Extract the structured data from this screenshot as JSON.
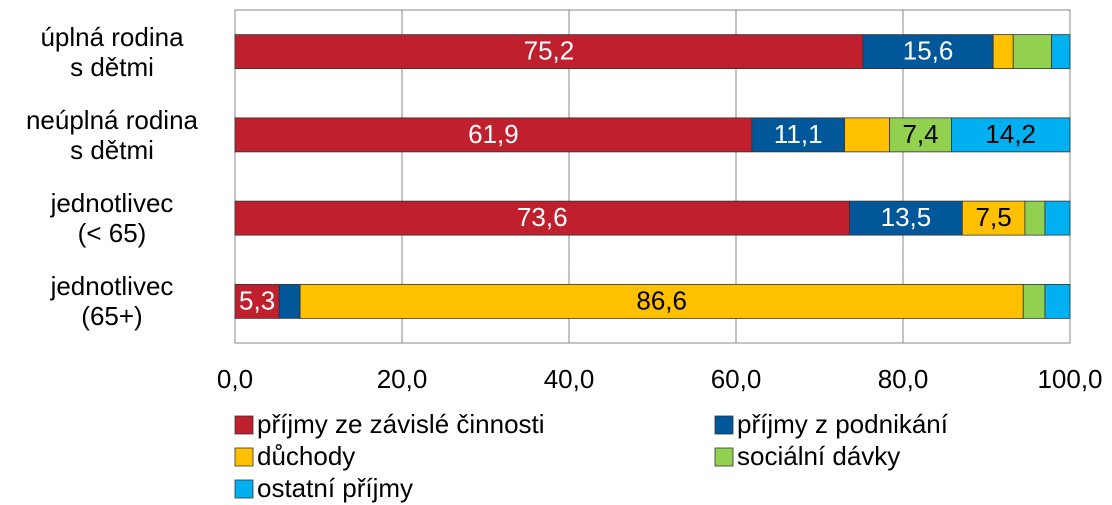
{
  "chart_data": {
    "type": "stacked_barh",
    "categories": [
      "úplná rodina\ns dětmi",
      "neúplná rodina\ns dětmi",
      "jednotlivec\n(< 65)",
      "jednotlivec\n(65+)"
    ],
    "series": [
      {
        "name": "příjmy ze závislé činnosti",
        "color": "#c0202e",
        "values": [
          75.2,
          61.9,
          73.6,
          5.3
        ],
        "value_labels": [
          "75,2",
          "61,9",
          "73,6",
          "5,3"
        ]
      },
      {
        "name": "příjmy z podnikání",
        "color": "#00579a",
        "values": [
          15.6,
          11.1,
          13.5,
          2.5
        ],
        "value_labels": [
          "15,6",
          "11,1",
          "13,5",
          null
        ]
      },
      {
        "name": "důchody",
        "color": "#ffc000",
        "values": [
          2.4,
          5.4,
          7.5,
          86.6
        ],
        "value_labels": [
          null,
          null,
          "7,5",
          "86,6"
        ]
      },
      {
        "name": "sociální dávky",
        "color": "#92d050",
        "values": [
          4.6,
          7.4,
          2.4,
          2.6
        ],
        "value_labels": [
          null,
          "7,4",
          null,
          null
        ]
      },
      {
        "name": "ostatní příjmy",
        "color": "#00b0f0",
        "values": [
          2.2,
          14.2,
          3.0,
          3.0
        ],
        "value_labels": [
          null,
          "14,2",
          null,
          null
        ]
      }
    ],
    "xlim": [
      0,
      100
    ],
    "xticks": [
      {
        "value": 0,
        "label": "0,0"
      },
      {
        "value": 20,
        "label": "20,0"
      },
      {
        "value": 40,
        "label": "40,0"
      },
      {
        "value": 60,
        "label": "60,0"
      },
      {
        "value": 80,
        "label": "80,0"
      },
      {
        "value": 100,
        "label": "100,0"
      }
    ],
    "grid": true
  }
}
